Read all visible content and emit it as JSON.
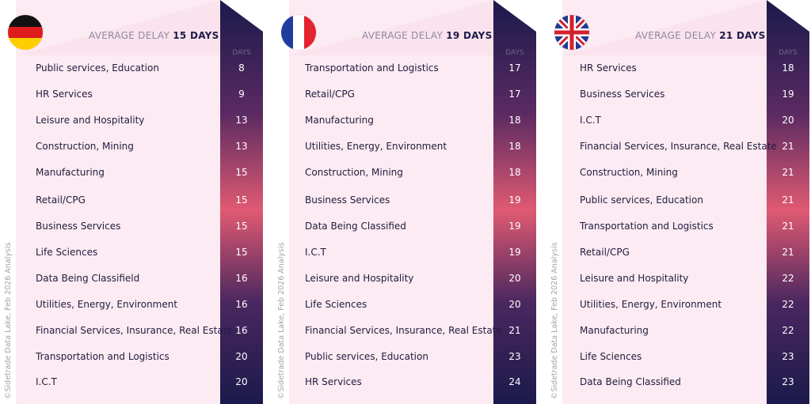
{
  "credit": "©Sidetrade Data Lake, Feb 2026 Analysis",
  "days_header": "DAYS",
  "avg_prefix": "AVERAGE DELAY",
  "chart_data": [
    {
      "type": "table",
      "country": "Germany",
      "flag": "germany-flag-icon",
      "average_delay": "15 DAYS",
      "categories": [
        "Public services, Education",
        "HR Services",
        "Leisure and Hospitality",
        "Construction, Mining",
        "Manufacturing",
        "Retail/CPG",
        "Business Services",
        "Life Sciences",
        "Data Being Classifield",
        "Utilities, Energy, Environment",
        "Financial Services, Insurance, Real Estate",
        "Transportation and Logistics",
        "I.C.T"
      ],
      "values": [
        8,
        9,
        13,
        13,
        15,
        15,
        15,
        15,
        16,
        16,
        16,
        20,
        20
      ]
    },
    {
      "type": "table",
      "country": "France",
      "flag": "france-flag-icon",
      "average_delay": "19 DAYS",
      "categories": [
        "Transportation and Logistics",
        "Retail/CPG",
        "Manufacturing",
        "Utilities, Energy, Environment",
        "Construction, Mining",
        "Business Services",
        "Data Being Classified",
        "I.C.T",
        "Leisure and Hospitality",
        "Life Sciences",
        "Financial Services, Insurance, Real Estate",
        "Public services, Education",
        "HR Services"
      ],
      "values": [
        17,
        17,
        18,
        18,
        18,
        19,
        19,
        19,
        20,
        20,
        21,
        23,
        24
      ]
    },
    {
      "type": "table",
      "country": "United Kingdom",
      "flag": "uk-flag-icon",
      "average_delay": "21 DAYS",
      "categories": [
        "HR Services",
        "Business Services",
        "I.C.T",
        "Financial Services, Insurance, Real Estate",
        "Construction, Mining",
        "Public services, Education",
        "Transportation and Logistics",
        "Retail/CPG",
        "Leisure and Hospitality",
        "Utilities, Energy, Environment",
        "Manufacturing",
        "Life Sciences",
        "Data Being Classified"
      ],
      "values": [
        18,
        19,
        20,
        21,
        21,
        21,
        21,
        21,
        22,
        22,
        22,
        23,
        23
      ]
    }
  ],
  "colors": {
    "panel_bg": "#fcebf2",
    "column_dark": "#1b1a4b",
    "column_glow": "#e05a72",
    "text_dark": "#201c3f"
  }
}
